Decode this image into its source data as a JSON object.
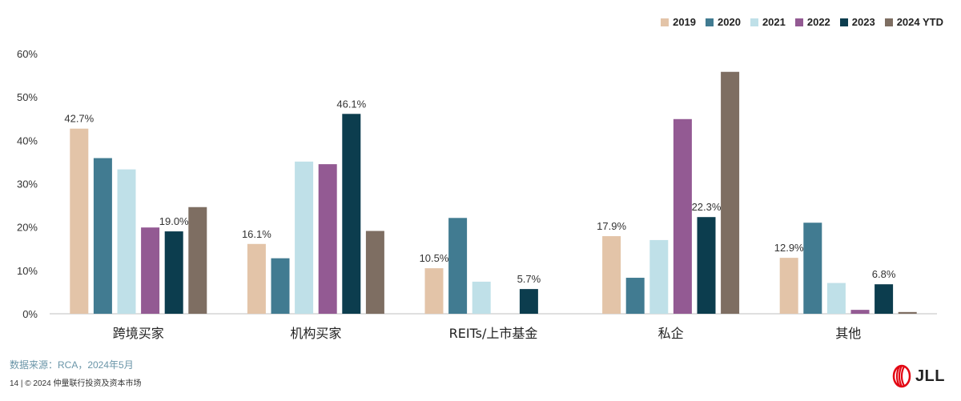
{
  "chart_data": {
    "type": "bar",
    "categories": [
      "跨境买家",
      "机构买家",
      "REITs/上市基金",
      "私企",
      "其他"
    ],
    "series": [
      {
        "name": "2019",
        "color": "#e3c4a8",
        "values": [
          42.7,
          16.1,
          10.5,
          17.9,
          12.9
        ]
      },
      {
        "name": "2020",
        "color": "#417b91",
        "values": [
          35.9,
          12.8,
          22.1,
          8.3,
          21.0
        ]
      },
      {
        "name": "2021",
        "color": "#bfe0e8",
        "values": [
          33.3,
          35.1,
          7.4,
          17.0,
          7.1
        ]
      },
      {
        "name": "2022",
        "color": "#935a93",
        "values": [
          19.9,
          34.5,
          0,
          44.9,
          0.9
        ]
      },
      {
        "name": "2023",
        "color": "#0c3d4e",
        "values": [
          19.0,
          46.1,
          5.7,
          22.3,
          6.8
        ]
      },
      {
        "name": "2024 YTD",
        "color": "#7e6e62",
        "values": [
          24.6,
          19.1,
          0,
          55.8,
          0.4
        ]
      }
    ],
    "data_labels": [
      {
        "series": 0,
        "category": 0,
        "text": "42.7%"
      },
      {
        "series": 4,
        "category": 0,
        "text": "19.0%"
      },
      {
        "series": 0,
        "category": 1,
        "text": "16.1%"
      },
      {
        "series": 4,
        "category": 1,
        "text": "46.1%"
      },
      {
        "series": 0,
        "category": 2,
        "text": "10.5%"
      },
      {
        "series": 4,
        "category": 2,
        "text": "5.7%"
      },
      {
        "series": 0,
        "category": 3,
        "text": "17.9%"
      },
      {
        "series": 4,
        "category": 3,
        "text": "22.3%"
      },
      {
        "series": 0,
        "category": 4,
        "text": "12.9%"
      },
      {
        "series": 4,
        "category": 4,
        "text": "6.8%"
      }
    ],
    "y_ticks": [
      "0%",
      "10%",
      "20%",
      "30%",
      "40%",
      "50%",
      "60%"
    ],
    "ylim": [
      0,
      60
    ],
    "grid": false,
    "legend_position": "top-right"
  },
  "footer": {
    "source": "数据来源：RCA，2024年5月",
    "copyright": "14 | © 2024 仲量联行投资及资本市场",
    "logo_text": "JLL"
  }
}
